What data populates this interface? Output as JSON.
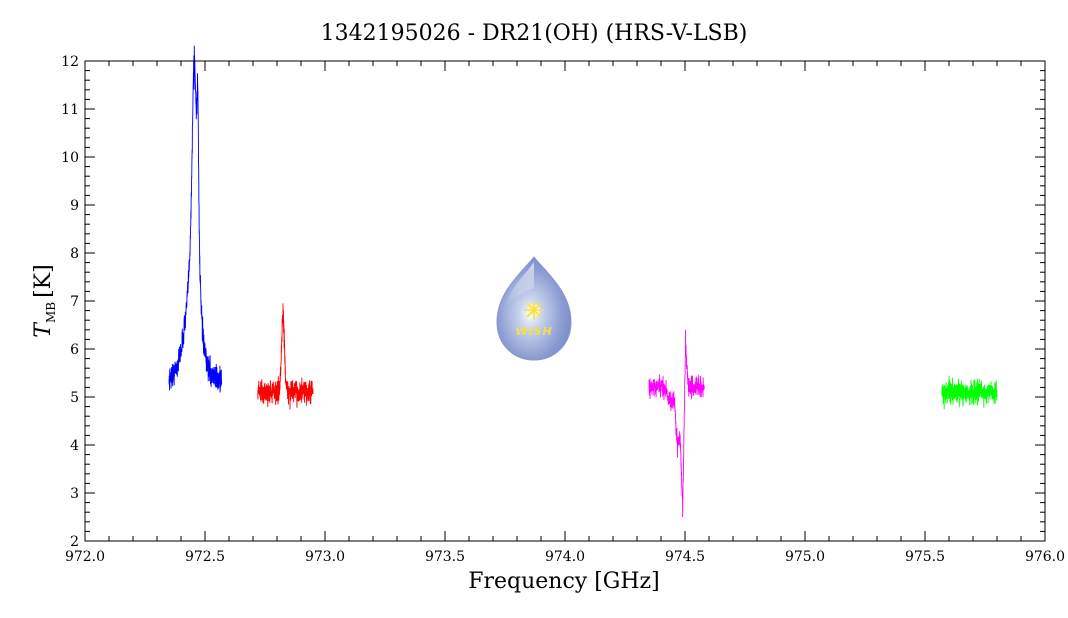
{
  "chart_data": {
    "type": "line",
    "title": "1342195026 - DR21(OH) (HRS-V-LSB)",
    "xlabel": "Frequency [GHz]",
    "ylabel": {
      "symbol": "T",
      "subscript": "MB",
      "unit": "[K]"
    },
    "xlim": [
      972.0,
      976.0
    ],
    "ylim": [
      2,
      12
    ],
    "xticks": [
      "972.0",
      "972.5",
      "973.0",
      "973.5",
      "974.0",
      "974.5",
      "975.0",
      "975.5",
      "976.0"
    ],
    "yticks": [
      "2",
      "3",
      "4",
      "5",
      "6",
      "7",
      "8",
      "9",
      "10",
      "11",
      "12"
    ],
    "grid": false,
    "series": [
      {
        "color": "#0000ff",
        "x_range": [
          972.35,
          972.57
        ],
        "baseline": 5.3,
        "noise": 0.18,
        "components": [
          {
            "center": 972.455,
            "amplitude": 5.6,
            "width": 0.012,
            "shape": "lorentz"
          },
          {
            "center": 972.47,
            "amplitude": 3.4,
            "width": 0.005,
            "shape": "lorentz"
          },
          {
            "center": 972.44,
            "amplitude": 1.0,
            "width": 0.03,
            "shape": "gauss"
          }
        ],
        "peak": [
          972.455,
          11.4
        ]
      },
      {
        "color": "#ff0000",
        "x_range": [
          972.72,
          972.95
        ],
        "baseline": 5.1,
        "noise": 0.18,
        "components": [
          {
            "center": 972.825,
            "amplitude": 1.6,
            "width": 0.006,
            "shape": "gauss"
          }
        ],
        "peak": [
          972.825,
          6.95
        ]
      },
      {
        "color": "#ff00ff",
        "x_range": [
          974.35,
          974.58
        ],
        "baseline": 5.2,
        "noise": 0.15,
        "components": [
          {
            "center": 974.49,
            "amplitude": -2.3,
            "width": 0.006,
            "shape": "gauss"
          },
          {
            "center": 974.47,
            "amplitude": -1.2,
            "width": 0.008,
            "shape": "gauss"
          },
          {
            "center": 974.502,
            "amplitude": 1.0,
            "width": 0.005,
            "shape": "gauss"
          },
          {
            "center": 974.44,
            "amplitude": -0.3,
            "width": 0.01,
            "shape": "gauss"
          }
        ],
        "peak": [
          974.502,
          6.4
        ],
        "trough": [
          974.49,
          2.5
        ]
      },
      {
        "color": "#00ff00",
        "x_range": [
          975.57,
          975.8
        ],
        "baseline": 5.1,
        "noise": 0.17,
        "components": []
      }
    ]
  },
  "logo": {
    "text": "WISH"
  }
}
